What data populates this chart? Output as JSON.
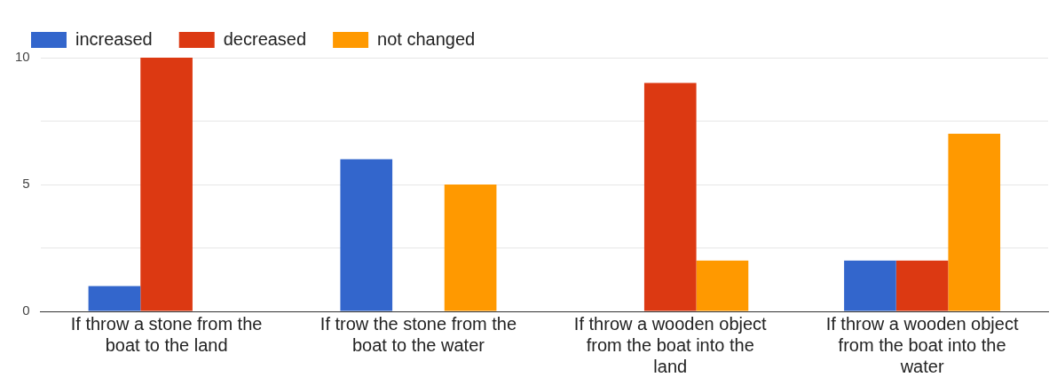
{
  "chart_data": {
    "type": "bar",
    "categories": [
      "If throw a stone from the boat to the land",
      "If trow the stone from the boat to the water",
      "If throw a wooden object from the boat into the land",
      "If throw a wooden object from the boat into the water"
    ],
    "series": [
      {
        "name": "increased",
        "color": "#3366cc",
        "values": [
          1,
          6,
          0,
          2
        ]
      },
      {
        "name": "decreased",
        "color": "#dc3912",
        "values": [
          10,
          0,
          9,
          2
        ]
      },
      {
        "name": "not changed",
        "color": "#ff9900",
        "values": [
          0,
          5,
          2,
          7
        ]
      }
    ],
    "ylim": [
      0,
      10
    ],
    "yticks": [
      0,
      {
        "value": 2.5,
        "label": null
      },
      5,
      {
        "value": 7.5,
        "label": null
      },
      10
    ],
    "grid": "y",
    "legend": "top left"
  }
}
